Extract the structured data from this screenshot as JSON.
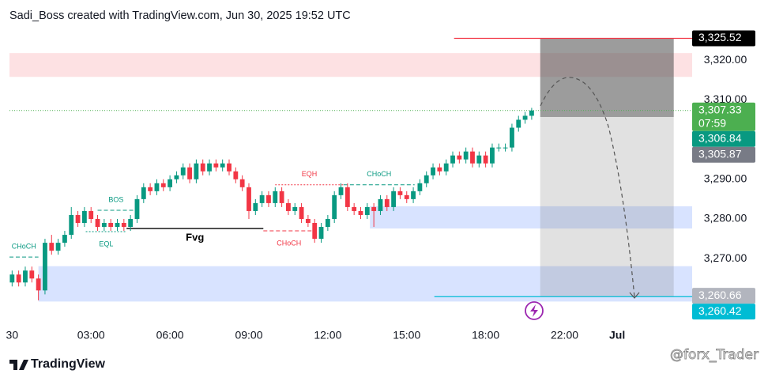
{
  "chart_data": {
    "type": "candlestick",
    "title": "Sadi_Boss created with TradingView.com, Jun 30, 2025 19:52 UTC",
    "up_color": "#089981",
    "down_color": "#f23645",
    "xlim": [
      -0.4,
      103.4
    ],
    "xticks": [
      {
        "value": 0,
        "label": "30"
      },
      {
        "value": 12,
        "label": "03:00"
      },
      {
        "value": 24,
        "label": "06:00"
      },
      {
        "value": 36,
        "label": "09:00"
      },
      {
        "value": 48,
        "label": "12:00"
      },
      {
        "value": 60,
        "label": "15:00"
      },
      {
        "value": 72,
        "label": "18:00"
      },
      {
        "value": 84,
        "label": "22:00"
      },
      {
        "value": 92,
        "label": "Jul"
      }
    ],
    "ylim": [
      3254.5,
      3328.8
    ],
    "yticks": [
      {
        "value": 3320,
        "label": "3,320.00"
      },
      {
        "value": 3310,
        "label": "3,310.00"
      },
      {
        "value": 3290,
        "label": "3,290.00"
      },
      {
        "value": 3280,
        "label": "3,280.00"
      },
      {
        "value": 3270,
        "label": "3,270.00"
      }
    ],
    "ohlc": [
      [
        3264,
        3267,
        3263,
        3266
      ],
      [
        3266,
        3267,
        3263,
        3264
      ],
      [
        3264,
        3268,
        3263,
        3267
      ],
      [
        3267,
        3268,
        3264,
        3265
      ],
      [
        3265,
        3266,
        3259.5,
        3262
      ],
      [
        3262,
        3275,
        3261,
        3274
      ],
      [
        3274,
        3276,
        3271,
        3272
      ],
      [
        3272,
        3275,
        3271,
        3274
      ],
      [
        3274,
        3277,
        3273,
        3276
      ],
      [
        3276,
        3283,
        3275,
        3281
      ],
      [
        3281,
        3282,
        3278,
        3279
      ],
      [
        3279,
        3283,
        3278,
        3282
      ],
      [
        3282,
        3283,
        3279,
        3280
      ],
      [
        3280,
        3281,
        3277,
        3278
      ],
      [
        3278,
        3280,
        3277,
        3279
      ],
      [
        3279,
        3280,
        3277,
        3278
      ],
      [
        3278,
        3280,
        3277,
        3279
      ],
      [
        3279,
        3280,
        3277,
        3278
      ],
      [
        3278,
        3281,
        3277,
        3280
      ],
      [
        3280,
        3286,
        3279,
        3285
      ],
      [
        3285,
        3289,
        3284,
        3288
      ],
      [
        3288,
        3289,
        3286,
        3287
      ],
      [
        3287,
        3290,
        3286,
        3289
      ],
      [
        3289,
        3290,
        3287,
        3288
      ],
      [
        3288,
        3291,
        3287,
        3290
      ],
      [
        3290,
        3292,
        3289,
        3291
      ],
      [
        3291,
        3294,
        3290,
        3293
      ],
      [
        3293,
        3294,
        3289,
        3290
      ],
      [
        3290,
        3295,
        3289,
        3294
      ],
      [
        3294,
        3295,
        3291,
        3292
      ],
      [
        3292,
        3295,
        3291,
        3294
      ],
      [
        3294,
        3295,
        3292,
        3293
      ],
      [
        3293,
        3295,
        3292,
        3294
      ],
      [
        3294,
        3295,
        3291,
        3292
      ],
      [
        3292,
        3293,
        3289,
        3290
      ],
      [
        3290,
        3291,
        3287,
        3288
      ],
      [
        3288,
        3289,
        3280,
        3282
      ],
      [
        3282,
        3285,
        3281,
        3284
      ],
      [
        3284,
        3287,
        3283,
        3286
      ],
      [
        3286,
        3287,
        3283,
        3284
      ],
      [
        3284,
        3288,
        3283,
        3287
      ],
      [
        3287,
        3288,
        3283,
        3284
      ],
      [
        3284,
        3285,
        3281,
        3282
      ],
      [
        3282,
        3284,
        3281,
        3283
      ],
      [
        3283,
        3284,
        3279,
        3280
      ],
      [
        3280,
        3281,
        3278,
        3279
      ],
      [
        3279,
        3280,
        3274,
        3275
      ],
      [
        3275,
        3279,
        3274,
        3278
      ],
      [
        3278,
        3281,
        3277,
        3280
      ],
      [
        3280,
        3287,
        3279,
        3286
      ],
      [
        3286,
        3289,
        3285,
        3288
      ],
      [
        3288,
        3289,
        3282,
        3283
      ],
      [
        3283,
        3284,
        3281,
        3282
      ],
      [
        3282,
        3283,
        3280,
        3281
      ],
      [
        3281,
        3284,
        3280,
        3283
      ],
      [
        3283,
        3284,
        3278,
        3282
      ],
      [
        3282,
        3286,
        3281,
        3285
      ],
      [
        3285,
        3286,
        3282,
        3283
      ],
      [
        3283,
        3288,
        3282,
        3287
      ],
      [
        3287,
        3288,
        3285,
        3286
      ],
      [
        3286,
        3287,
        3284,
        3285
      ],
      [
        3285,
        3288,
        3284,
        3287
      ],
      [
        3287,
        3290,
        3286,
        3289
      ],
      [
        3289,
        3292,
        3288,
        3291
      ],
      [
        3291,
        3294,
        3290,
        3293
      ],
      [
        3293,
        3294,
        3291,
        3292
      ],
      [
        3292,
        3295,
        3291,
        3294
      ],
      [
        3294,
        3297,
        3293,
        3296
      ],
      [
        3296,
        3297,
        3294,
        3295
      ],
      [
        3295,
        3298,
        3294,
        3297
      ],
      [
        3297,
        3298,
        3293,
        3294
      ],
      [
        3294,
        3297,
        3293,
        3296
      ],
      [
        3296,
        3297,
        3293,
        3294
      ],
      [
        3294,
        3299,
        3293,
        3298
      ],
      [
        3298,
        3299,
        3297,
        3298
      ],
      [
        3298,
        3299,
        3297,
        3298
      ],
      [
        3298,
        3304,
        3297,
        3303
      ],
      [
        3303,
        3306,
        3302,
        3305
      ],
      [
        3305,
        3307,
        3304,
        3306
      ],
      [
        3306,
        3308,
        3305,
        3307.33
      ]
    ],
    "zones": [
      {
        "from": -0.4,
        "low": 3315.8,
        "high": 3321.8,
        "color": "rgba(242,54,69,0.15)"
      },
      {
        "from": 4,
        "low": 3259.2,
        "high": 3268.1,
        "color": "rgba(41,98,255,0.18)"
      },
      {
        "from": 54.4,
        "low": 3277.6,
        "high": 3283.2,
        "color": "rgba(41,98,255,0.18)"
      }
    ],
    "levels": [
      {
        "label": "CHoCH",
        "price": 3270.4,
        "from": -0.4,
        "to": 4,
        "color": "#089981",
        "style": "dashed",
        "side": "above"
      },
      {
        "label": "EQL",
        "price": 3276.8,
        "from": 11.2,
        "to": 17.4,
        "color": "#089981",
        "style": "dotted",
        "side": "below"
      },
      {
        "label": "BOS",
        "price": 3282.2,
        "from": 13,
        "to": 18.6,
        "color": "#089981",
        "style": "dashed",
        "side": "above"
      },
      {
        "label": "Fvg",
        "price": 3277.6,
        "from": 17.4,
        "to": 38.2,
        "color": "#000000",
        "style": "solid",
        "side": "below"
      },
      {
        "label": "EQH",
        "price": 3288.6,
        "from": 40,
        "to": 50.4,
        "color": "#f23645",
        "style": "dotted",
        "side": "above"
      },
      {
        "label": "CHoCH",
        "price": 3277,
        "from": 38.2,
        "to": 46,
        "color": "#f23645",
        "style": "dashed",
        "side": "below"
      },
      {
        "label": "CHoCH",
        "price": 3288.6,
        "from": 50.4,
        "to": 61.2,
        "color": "#089981",
        "style": "dashed",
        "side": "above"
      }
    ],
    "position": {
      "from": 80.3,
      "to": 100.6,
      "entry": 3305.7,
      "stop": 3325.52,
      "target": 3260.42
    },
    "lines": [
      {
        "price": 3325.52,
        "from": 67.2,
        "color": "#f23645"
      },
      {
        "price": 3260.42,
        "from": 64.2,
        "color": "#00bcd4"
      }
    ],
    "price_labels": [
      {
        "value": 3325.52,
        "label": "3,325.52",
        "color": "#000000"
      },
      {
        "value": 3307.33,
        "label": "3,307.33",
        "sub": "07:59",
        "color": "#4caf50"
      },
      {
        "value": 3306.84,
        "label": "3,306.84",
        "color": "#089981"
      },
      {
        "value": 3305.87,
        "label": "3,305.87",
        "color": "#787b86"
      },
      {
        "value": 3260.66,
        "label": "3,260.66",
        "color": "#b2b5be"
      },
      {
        "value": 3260.42,
        "label": "3,260.42",
        "color": "#00bcd4"
      }
    ],
    "logo": "TradingView",
    "watermark": "@forx_Trader"
  }
}
